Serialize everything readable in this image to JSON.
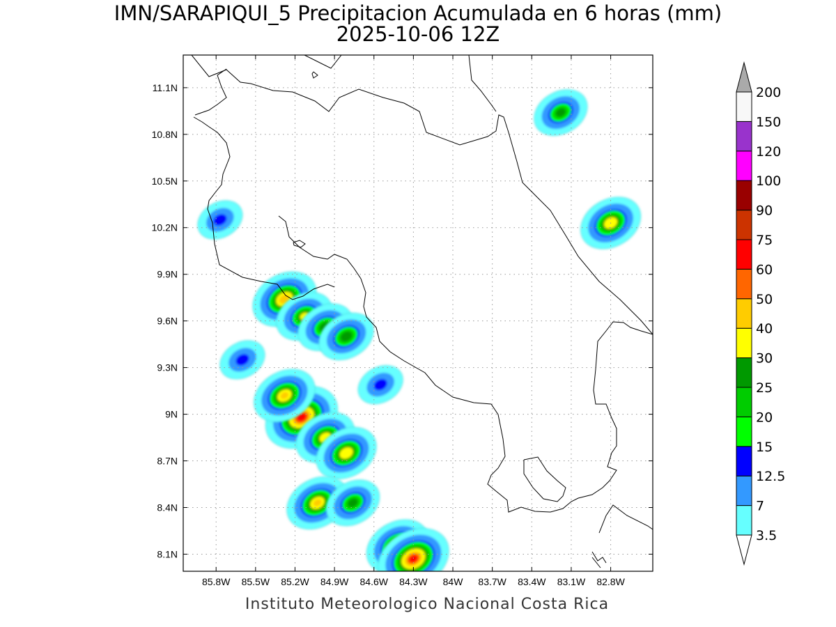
{
  "title_line1": "IMN/SARAPIQUI_5 Precipitacion Acumulada en 6 horas (mm)",
  "title_line2": "2025-10-06 12Z",
  "footer": "Instituto Meteorologico Nacional Costa Rica",
  "map": {
    "lon_range": [
      -86.05,
      -82.48
    ],
    "lat_range": [
      7.99,
      11.31
    ],
    "lon_ticks": [
      {
        "value": -85.8,
        "label": "85.8W"
      },
      {
        "value": -85.5,
        "label": "85.5W"
      },
      {
        "value": -85.2,
        "label": "85.2W"
      },
      {
        "value": -84.9,
        "label": "84.9W"
      },
      {
        "value": -84.6,
        "label": "84.6W"
      },
      {
        "value": -84.3,
        "label": "84.3W"
      },
      {
        "value": -84.0,
        "label": "84W"
      },
      {
        "value": -83.7,
        "label": "83.7W"
      },
      {
        "value": -83.4,
        "label": "83.4W"
      },
      {
        "value": -83.1,
        "label": "83.1W"
      },
      {
        "value": -82.8,
        "label": "82.8W"
      }
    ],
    "lat_ticks": [
      {
        "value": 11.1,
        "label": "11.1N"
      },
      {
        "value": 10.8,
        "label": "10.8N"
      },
      {
        "value": 10.5,
        "label": "10.5N"
      },
      {
        "value": 10.2,
        "label": "10.2N"
      },
      {
        "value": 9.9,
        "label": "9.9N"
      },
      {
        "value": 9.6,
        "label": "9.6N"
      },
      {
        "value": 9.3,
        "label": "9.3N"
      },
      {
        "value": 9.0,
        "label": "9N"
      },
      {
        "value": 8.7,
        "label": "8.7N"
      },
      {
        "value": 8.4,
        "label": "8.4N"
      },
      {
        "value": 8.1,
        "label": "8.1N"
      }
    ],
    "grid": true
  },
  "colorbar": {
    "labels": [
      "3.5",
      "7",
      "12.5",
      "15",
      "20",
      "25",
      "30",
      "40",
      "50",
      "60",
      "75",
      "90",
      "100",
      "120",
      "150",
      "200"
    ],
    "colors": [
      "#66ffff",
      "#3399ff",
      "#0000ff",
      "#00ff00",
      "#00cc00",
      "#009900",
      "#ffff00",
      "#ffcc00",
      "#ff6600",
      "#ff0000",
      "#cc3300",
      "#990000",
      "#ff00ff",
      "#9933cc",
      "#f8f8f8"
    ],
    "top_arrow_color": "#aaaaaa",
    "bottom_arrow_color": "#ffffff"
  },
  "rain_cells": [
    {
      "lon": -85.28,
      "lat": 9.74,
      "max": 45
    },
    {
      "lon": -85.13,
      "lat": 9.63,
      "max": 30
    },
    {
      "lon": -84.97,
      "lat": 9.56,
      "max": 28
    },
    {
      "lon": -84.81,
      "lat": 9.5,
      "max": 28
    },
    {
      "lon": -85.15,
      "lat": 8.98,
      "max": 65
    },
    {
      "lon": -85.28,
      "lat": 9.12,
      "max": 40
    },
    {
      "lon": -84.97,
      "lat": 8.85,
      "max": 35
    },
    {
      "lon": -84.81,
      "lat": 8.75,
      "max": 38
    },
    {
      "lon": -85.03,
      "lat": 8.43,
      "max": 40
    },
    {
      "lon": -84.76,
      "lat": 8.43,
      "max": 26
    },
    {
      "lon": -84.42,
      "lat": 8.15,
      "max": 42
    },
    {
      "lon": -84.3,
      "lat": 8.07,
      "max": 62
    },
    {
      "lon": -83.18,
      "lat": 10.94,
      "max": 26
    },
    {
      "lon": -82.8,
      "lat": 10.23,
      "max": 38
    },
    {
      "lon": -85.77,
      "lat": 10.25,
      "max": 14
    },
    {
      "lon": -85.6,
      "lat": 9.35,
      "max": 14
    },
    {
      "lon": -84.55,
      "lat": 9.19,
      "max": 14
    }
  ]
}
